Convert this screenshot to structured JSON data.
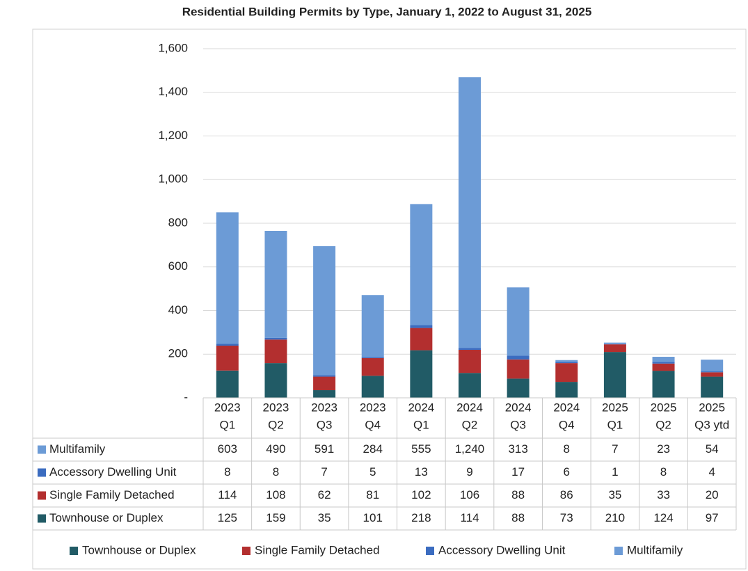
{
  "chart_data": {
    "type": "stacked_bar",
    "title": "Residential Building Permits by Type, January 1, 2022 to August 31, 2025",
    "categories": [
      [
        "2023",
        "Q1"
      ],
      [
        "2023",
        "Q2"
      ],
      [
        "2023",
        "Q3"
      ],
      [
        "2023",
        "Q4"
      ],
      [
        "2024",
        "Q1"
      ],
      [
        "2024",
        "Q2"
      ],
      [
        "2024",
        "Q3"
      ],
      [
        "2024",
        "Q4"
      ],
      [
        "2025",
        "Q1"
      ],
      [
        "2025",
        "Q2"
      ],
      [
        "2025",
        "Q3 ytd"
      ]
    ],
    "series": [
      {
        "name": "Townhouse or Duplex",
        "color": "#215b66",
        "values": [
          125,
          159,
          35,
          101,
          218,
          114,
          88,
          73,
          210,
          124,
          97
        ]
      },
      {
        "name": "Single Family Detached",
        "color": "#b32f2f",
        "values": [
          114,
          108,
          62,
          81,
          102,
          106,
          88,
          86,
          35,
          33,
          20
        ]
      },
      {
        "name": "Accessory Dwelling Unit",
        "color": "#3b6cc0",
        "values": [
          8,
          8,
          7,
          5,
          13,
          9,
          17,
          6,
          1,
          8,
          4
        ]
      },
      {
        "name": "Multifamily",
        "color": "#6c9bd6",
        "values": [
          603,
          490,
          591,
          284,
          555,
          1240,
          313,
          8,
          7,
          23,
          54
        ],
        "value_labels": [
          "603",
          "490",
          "591",
          "284",
          "555",
          "1,240",
          "313",
          "8",
          "7",
          "23",
          "54"
        ]
      }
    ],
    "ylim": [
      0,
      1600
    ],
    "yticks": [
      {
        "value": 0,
        "label": "-"
      },
      200,
      400,
      600,
      800,
      {
        "value": 1000,
        "label": "1,000"
      },
      {
        "value": 1200,
        "label": "1,200"
      },
      {
        "value": 1400,
        "label": "1,400"
      },
      {
        "value": 1600,
        "label": "1,600"
      }
    ],
    "grid": true,
    "legend": "bottom"
  }
}
